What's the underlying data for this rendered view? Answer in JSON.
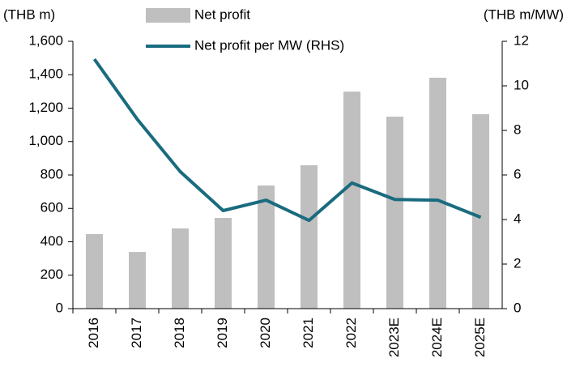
{
  "chart_data": {
    "type": "bar",
    "y_label": "(THB m)",
    "y2_label": "(THB m/MW)",
    "categories": [
      "2016",
      "2017",
      "2018",
      "2019",
      "2020",
      "2021",
      "2022",
      "2023E",
      "2024E",
      "2025E"
    ],
    "series": [
      {
        "name": "Net profit",
        "type": "bar",
        "color": "#bfbfbf",
        "axis": "y",
        "values": [
          446,
          339,
          480,
          543,
          737,
          858,
          1299,
          1149,
          1382,
          1164
        ]
      },
      {
        "name": "Net profit per MW (RHS)",
        "type": "line",
        "color": "#1a6b7e",
        "axis": "y2",
        "values": [
          11.2,
          8.5,
          6.15,
          4.4,
          4.87,
          3.96,
          5.64,
          4.9,
          4.87,
          4.1
        ]
      }
    ],
    "ylim": [
      0,
      1600
    ],
    "yticks": [
      0,
      200,
      400,
      600,
      800,
      {
        "value": 1000,
        "label": "1,000"
      },
      {
        "value": 1200,
        "label": "1,200"
      },
      {
        "value": 1400,
        "label": "1,400"
      },
      {
        "value": 1600,
        "label": "1,600"
      }
    ],
    "y2lim": [
      0,
      12
    ],
    "y2ticks": [
      0,
      2,
      4,
      6,
      8,
      10,
      12
    ],
    "legend": "top"
  }
}
